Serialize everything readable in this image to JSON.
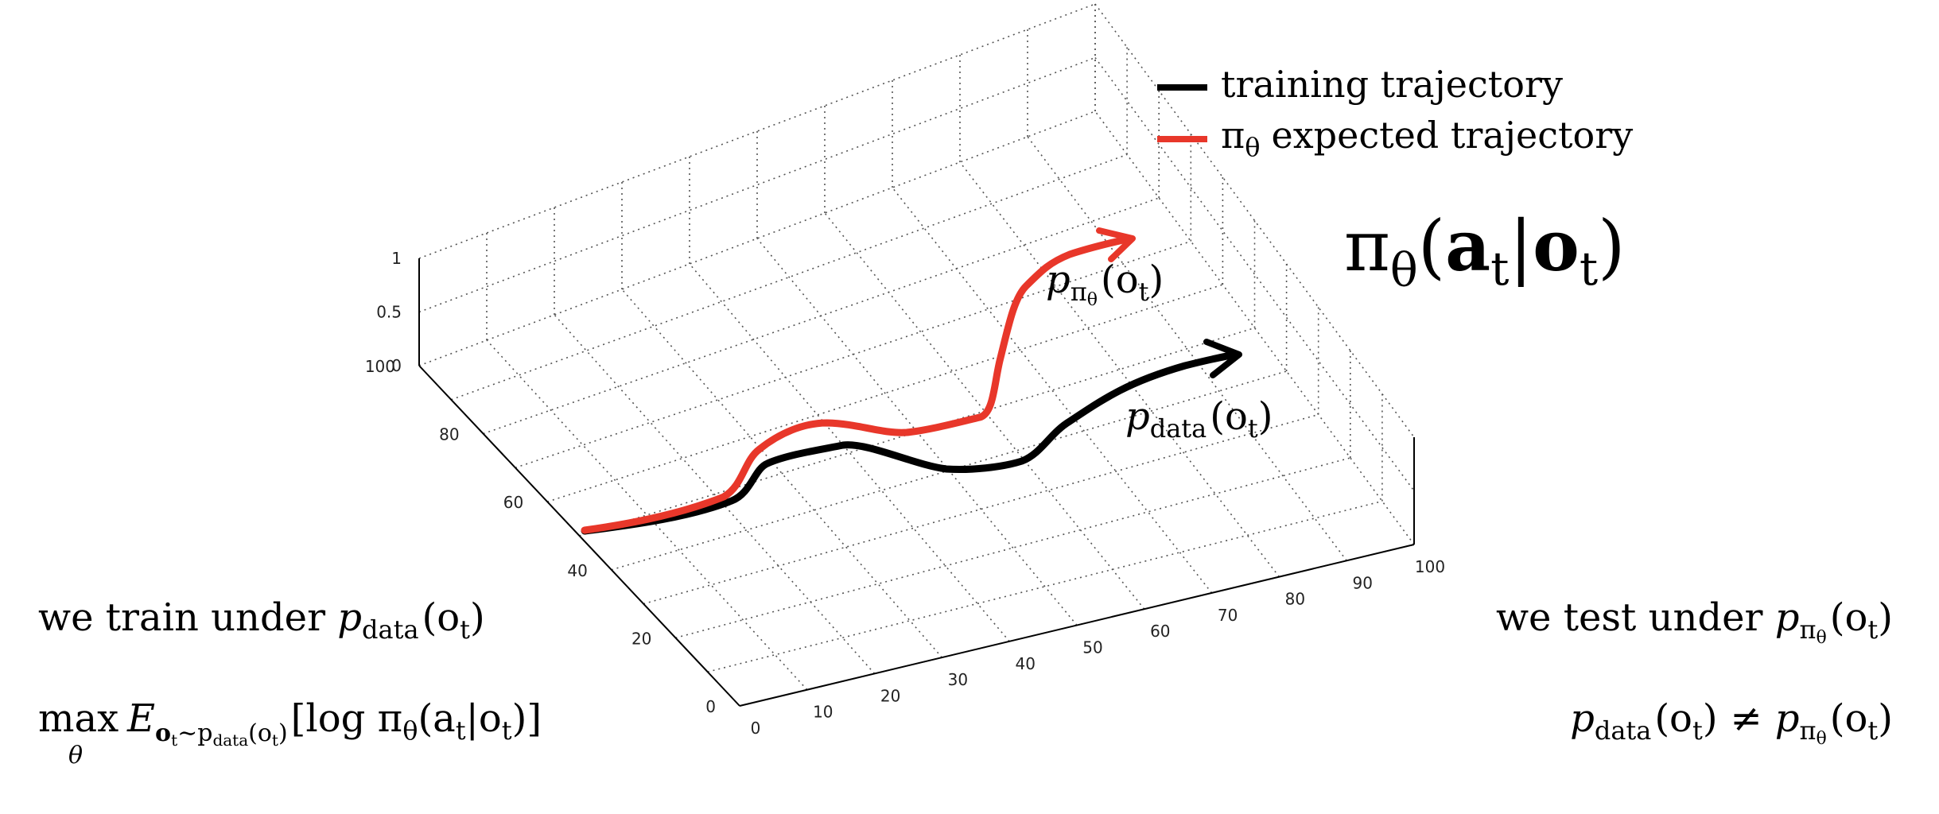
{
  "legend": [
    {
      "label": "training trajectory",
      "color": "#000000"
    },
    {
      "symbol": "π",
      "subscript": "θ",
      "label": "expected trajectory",
      "color": "#e8372a"
    }
  ],
  "policy": {
    "pi": "π",
    "theta": "θ",
    "open": "(",
    "a": "a",
    "t": "t",
    "bar": "|",
    "o": "o",
    "close": ")"
  },
  "curve_labels": {
    "red": {
      "p": "p",
      "sub": "π",
      "subsub": "θ",
      "args": "(o",
      "t": "t",
      "close": ")"
    },
    "black": {
      "p": "p",
      "sub": "data",
      "args": "(o",
      "t": "t",
      "close": ")"
    }
  },
  "left_text": {
    "line1_prefix": "we train under ",
    "line1_p": "p",
    "line1_sub": "data",
    "line1_args": "(o",
    "line1_t": "t",
    "line1_close": ")",
    "max": "max",
    "max_sub": "θ",
    "E": "E",
    "E_sub": "o",
    "E_sub_t": "t",
    "E_sub_rest": "∼p",
    "E_sub_data": "data",
    "E_sub_args": "(o",
    "E_sub_args_t": "t",
    "E_sub_close": ")",
    "bracket": "[log π",
    "bracket_theta": "θ",
    "bracket_args": "(a",
    "bracket_t1": "t",
    "bracket_bar": "|o",
    "bracket_t2": "t",
    "bracket_close": ")]"
  },
  "right_text": {
    "line1_prefix": "we test under ",
    "line1_p": "p",
    "line1_sub": "π",
    "line1_subsub": "θ",
    "line1_args": "(o",
    "line1_t": "t",
    "line1_close": ")",
    "ineq_p1": "p",
    "ineq_sub1": "data",
    "ineq_args1": "(o",
    "ineq_t1": "t",
    "ineq_close1": ")",
    "ineq_neq": "≠",
    "ineq_p2": "p",
    "ineq_sub2": "π",
    "ineq_subsub2": "θ",
    "ineq_args2": "(o",
    "ineq_t2": "t",
    "ineq_close2": ")"
  },
  "axes": {
    "x_ticks": [
      "0",
      "10",
      "20",
      "30",
      "40",
      "50",
      "60",
      "70",
      "80",
      "90",
      "100"
    ],
    "y_ticks": [
      "0",
      "20",
      "40",
      "60",
      "80",
      "100"
    ],
    "z_ticks": [
      "0",
      "0.5",
      "1"
    ]
  },
  "colors": {
    "red": "#e8372a",
    "black": "#000000"
  }
}
